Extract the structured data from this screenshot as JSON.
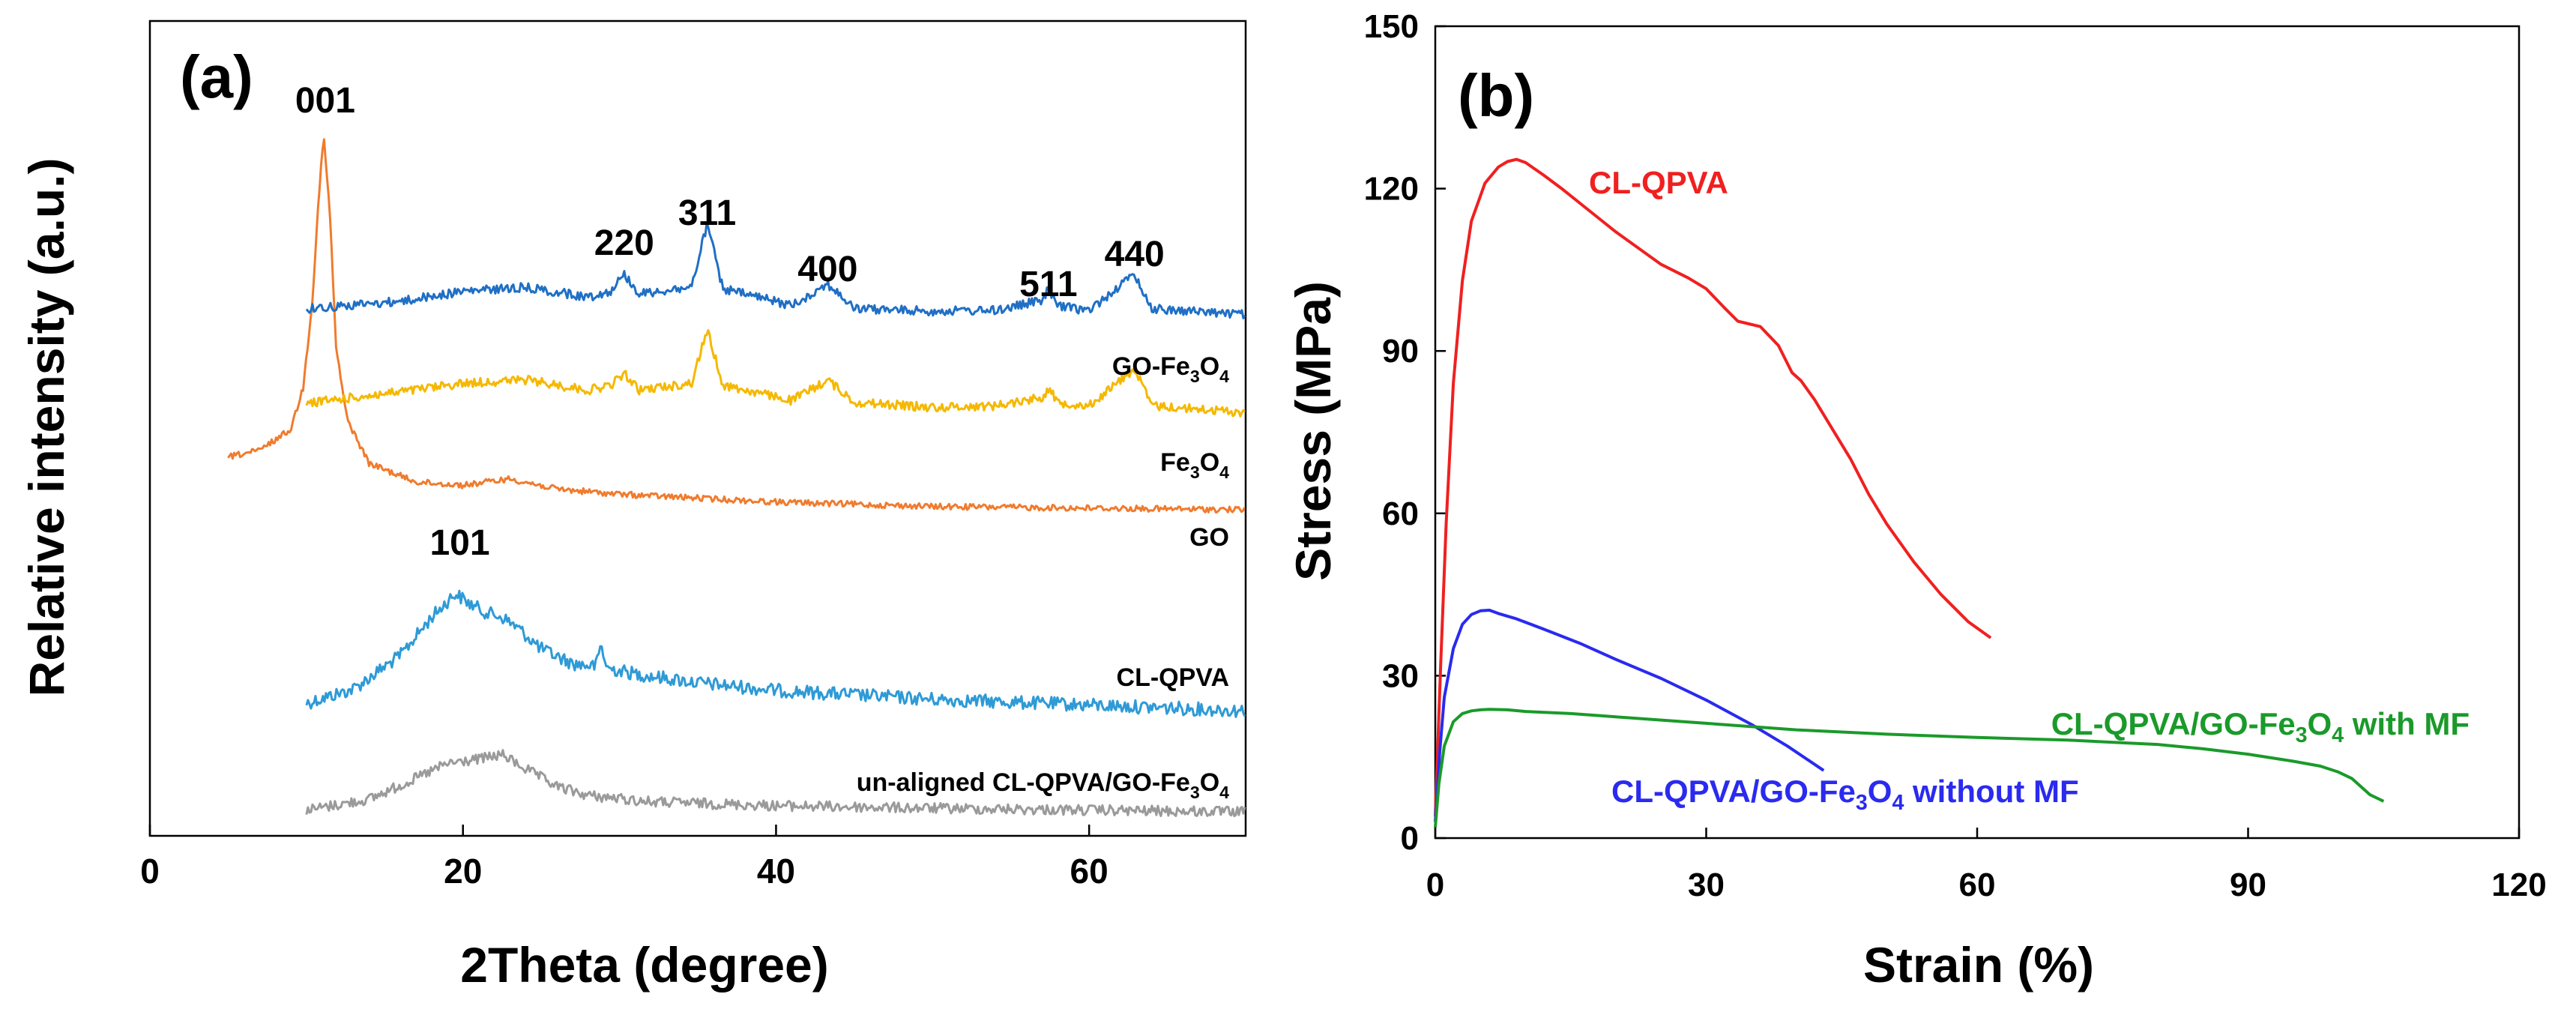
{
  "chart_data": [
    {
      "panel_label": "(a)",
      "type": "line",
      "xlabel": "2Theta (degree)",
      "ylabel": "Relative intensity (a.u.)",
      "xlim": [
        0,
        70
      ],
      "xticks": [
        0,
        20,
        40,
        60
      ],
      "yticks_shown": false,
      "series": [
        {
          "name": "GO-Fe3O4",
          "label_main": "GO-Fe",
          "label_sub1": "3",
          "label_mid": "O",
          "label_sub2": "4",
          "color": "#1f6fc5",
          "x": [
            10,
            16,
            20,
            24,
            28,
            29.5,
            30.3,
            31.2,
            34.6,
            35.6,
            36.6,
            41,
            43.3,
            45,
            50,
            54,
            57,
            57.4,
            58,
            60,
            62.9,
            64,
            70
          ],
          "y": [
            0.12,
            0.21,
            0.33,
            0.38,
            0.26,
            0.34,
            0.55,
            0.3,
            0.38,
            1.15,
            0.36,
            0.16,
            0.42,
            0.12,
            0.09,
            0.1,
            0.22,
            0.36,
            0.15,
            0.1,
            0.54,
            0.12,
            0.05
          ]
        },
        {
          "name": "Fe3O4",
          "label_main": "Fe",
          "label_sub1": "3",
          "label_mid": "O",
          "label_sub2": "4",
          "color": "#f5b800",
          "x": [
            10,
            16,
            20,
            24,
            28,
            29.5,
            30.3,
            31.2,
            34.6,
            35.6,
            36.6,
            41,
            43.3,
            45,
            50,
            54,
            57,
            57.4,
            58,
            60,
            62.9,
            64,
            70
          ],
          "y": [
            0.15,
            0.28,
            0.38,
            0.42,
            0.3,
            0.36,
            0.5,
            0.3,
            0.38,
            1.0,
            0.36,
            0.18,
            0.42,
            0.16,
            0.1,
            0.12,
            0.22,
            0.32,
            0.16,
            0.12,
            0.55,
            0.12,
            0.04
          ]
        },
        {
          "name": "GO",
          "color": "#f07b2e",
          "x": [
            5,
            7,
            9,
            9.8,
            10.4,
            10.8,
            11.1,
            11.5,
            11.9,
            12.6,
            14,
            17,
            20,
            23,
            26,
            30,
            40,
            50,
            70
          ],
          "y": [
            0.82,
            0.92,
            1.25,
            1.9,
            3.3,
            4.9,
            5.8,
            4.6,
            2.5,
            1.4,
            0.72,
            0.43,
            0.38,
            0.48,
            0.32,
            0.24,
            0.12,
            0.05,
            0.0
          ]
        },
        {
          "name": "CL-QPVA",
          "color": "#2e9ad6",
          "x": [
            10,
            13,
            16,
            18,
            19.5,
            20.5,
            21.5,
            22.5,
            23.5,
            25,
            27,
            28.5,
            28.8,
            29.2,
            31,
            35,
            40,
            50,
            60,
            70
          ],
          "y": [
            0.2,
            0.42,
            0.95,
            1.55,
            1.92,
            1.75,
            1.62,
            1.55,
            1.38,
            1.05,
            0.82,
            0.78,
            1.12,
            0.75,
            0.66,
            0.52,
            0.4,
            0.26,
            0.17,
            0.08
          ]
        },
        {
          "name": "un-aligned CL-QPVA/GO-Fe3O4",
          "label_main": "un-aligned CL-QPVA/GO-Fe",
          "label_sub1": "3",
          "label_mid": "O",
          "label_sub2": "4",
          "color": "#9a9a9a",
          "x": [
            10,
            14,
            17,
            19,
            21,
            22.5,
            24,
            26,
            28,
            32,
            40,
            50,
            60,
            70
          ],
          "y": [
            0.05,
            0.22,
            0.55,
            0.78,
            0.85,
            0.92,
            0.7,
            0.42,
            0.28,
            0.18,
            0.12,
            0.08,
            0.05,
            0.02
          ]
        }
      ],
      "peak_labels": [
        {
          "text": "001",
          "x": 11.2
        },
        {
          "text": "220",
          "x": 30.3
        },
        {
          "text": "311",
          "x": 35.6
        },
        {
          "text": "400",
          "x": 43.3
        },
        {
          "text": "511",
          "x": 57.4
        },
        {
          "text": "440",
          "x": 62.9
        },
        {
          "text": "101",
          "x": 19.8
        }
      ]
    },
    {
      "panel_label": "(b)",
      "type": "line",
      "xlabel": "Strain (%)",
      "ylabel": "Stress (MPa)",
      "xlim": [
        0,
        120
      ],
      "ylim": [
        0,
        150
      ],
      "xticks": [
        0,
        30,
        60,
        90,
        120
      ],
      "yticks": [
        0,
        30,
        60,
        90,
        120,
        150
      ],
      "series": [
        {
          "name": "CL-QPVA",
          "color": "#f02020",
          "x": [
            0,
            0.6,
            1.2,
            2,
            3,
            4,
            5.5,
            7,
            8,
            9,
            10,
            12,
            14,
            17,
            20,
            25,
            28,
            30,
            32,
            33.5,
            36,
            38,
            39.5,
            40.5,
            42,
            44,
            46,
            48,
            50,
            53,
            56,
            59,
            61.5
          ],
          "y": [
            4,
            32,
            58,
            84,
            103,
            114,
            121,
            124,
            125,
            125.4,
            124.8,
            122.5,
            120,
            116,
            112,
            106,
            103.5,
            101.5,
            98,
            95.5,
            94.5,
            91,
            86,
            84.5,
            81,
            75.5,
            70,
            63.5,
            58,
            51,
            45,
            40,
            37
          ]
        },
        {
          "name": "CL-QPVA/GO-Fe3O4 without MF",
          "label_main": "CL-QPVA/GO-Fe",
          "label_sub1": "3",
          "label_mid": "O",
          "label_sub2": "4",
          "label_tail": "  without MF",
          "color": "#2a2af0",
          "x": [
            0,
            0.5,
            1,
            2,
            3,
            4,
            5,
            6,
            7,
            9,
            12,
            16,
            20,
            25,
            30,
            35,
            39,
            43
          ],
          "y": [
            3,
            16,
            26,
            35,
            39.5,
            41.3,
            42,
            42.1,
            41.5,
            40.5,
            38.6,
            36,
            33,
            29.5,
            25.5,
            21,
            17,
            12.5
          ]
        },
        {
          "name": "CL-QPVA/GO-Fe3O4 with MF",
          "label_main": "CL-QPVA/GO-Fe",
          "label_sub1": "3",
          "label_mid": "O",
          "label_sub2": "4",
          "label_tail": "  with MF",
          "color": "#1a9a2a",
          "x": [
            0,
            0.4,
            1,
            2,
            3,
            4,
            5,
            6,
            8,
            10,
            15,
            20,
            30,
            40,
            50,
            60,
            70,
            80,
            85,
            90,
            95,
            98,
            100,
            101.5,
            102.5,
            103.5,
            105
          ],
          "y": [
            2,
            10,
            17,
            21.5,
            23,
            23.5,
            23.7,
            23.8,
            23.7,
            23.4,
            23,
            22.4,
            21.2,
            20,
            19.2,
            18.6,
            18.1,
            17.3,
            16.5,
            15.5,
            14.2,
            13.3,
            12.2,
            11,
            9.5,
            8,
            6.8
          ]
        }
      ]
    }
  ]
}
